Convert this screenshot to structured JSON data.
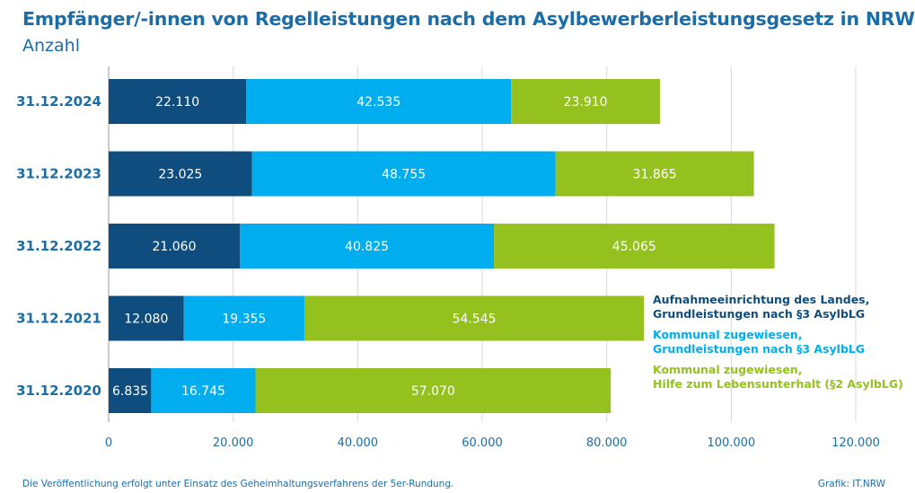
{
  "header": {
    "title": "Empfänger/-innen von Regelleistungen nach dem Asylbewerberleistungsgesetz in NRW",
    "subtitle": "Anzahl"
  },
  "footer": {
    "note": "Die Veröffentlichung erfolgt unter Einsatz des Geheimhaltungsverfahrens der 5er-Rundung.",
    "credit": "Grafik: IT.NRW"
  },
  "legend": [
    {
      "line1": "Aufnahmeeinrichtung des Landes,",
      "line2": "Grundleistungen nach §3 AsylbLG",
      "color": "#0f4d7f"
    },
    {
      "line1": "Kommunal zugewiesen,",
      "line2": "Grundleistungen nach §3 AsylbLG",
      "color": "#00aeef"
    },
    {
      "line1": "Kommunal zugewiesen,",
      "line2": "Hilfe zum Lebensunterhalt (§2 AsylbLG)",
      "color": "#95c11f"
    }
  ],
  "chart_data": {
    "type": "bar",
    "orientation": "horizontal",
    "stacked": true,
    "categories": [
      "31.12.2024",
      "31.12.2023",
      "31.12.2022",
      "31.12.2021",
      "31.12.2020"
    ],
    "series": [
      {
        "name": "Aufnahmeeinrichtung des Landes, Grundleistungen nach §3 AsylbLG",
        "color": "#0f4d7f",
        "values": [
          22110,
          23025,
          21060,
          12080,
          6835
        ],
        "labels": [
          "22.110",
          "23.025",
          "21.060",
          "12.080",
          "6.835"
        ]
      },
      {
        "name": "Kommunal zugewiesen, Grundleistungen nach §3 AsylbLG",
        "color": "#00aeef",
        "values": [
          42535,
          48755,
          40825,
          19355,
          16745
        ],
        "labels": [
          "42.535",
          "48.755",
          "40.825",
          "19.355",
          "16.745"
        ]
      },
      {
        "name": "Kommunal zugewiesen, Hilfe zum Lebensunterhalt (§2 AsylbLG)",
        "color": "#95c11f",
        "values": [
          23910,
          31865,
          45065,
          54545,
          57070
        ],
        "labels": [
          "23.910",
          "31.865",
          "45.065",
          "54.545",
          "57.070"
        ]
      }
    ],
    "xlim": [
      0,
      120000
    ],
    "xticks": [
      0,
      20000,
      40000,
      60000,
      80000,
      100000,
      120000
    ],
    "xtick_labels": [
      "0",
      "20.000",
      "40.000",
      "60.000",
      "80.000",
      "100.000",
      "120.000"
    ],
    "grid": true,
    "legend_position": "right"
  }
}
